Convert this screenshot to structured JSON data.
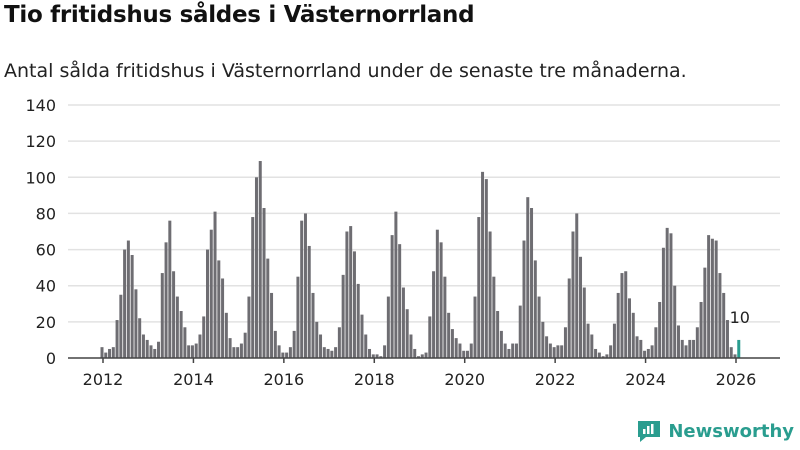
{
  "title": "Tio fritidshus såldes i Västernorrland",
  "subtitle": "Antal sålda fritidshus i Västernorrland under de senaste tre månaderna.",
  "brand": "Newsworthy",
  "colors": {
    "bar": "#6e6d72",
    "highlight": "#2a9d8f",
    "grid": "#e2e2e2"
  },
  "chart_data": {
    "type": "bar",
    "title": "Tio fritidshus såldes i Västernorrland",
    "xlabel": "",
    "ylabel": "",
    "ylim": [
      0,
      140
    ],
    "yticks": [
      0,
      20,
      40,
      60,
      80,
      100,
      120,
      140
    ],
    "xticks": [
      "2012",
      "2014",
      "2016",
      "2018",
      "2020",
      "2022",
      "2024",
      "2026"
    ],
    "start": "2012-01",
    "frequency": "monthly",
    "annotation": {
      "label": "10",
      "index": "last"
    },
    "values": [
      6,
      3,
      5,
      6,
      21,
      35,
      60,
      65,
      57,
      38,
      22,
      13,
      10,
      7,
      5,
      9,
      47,
      64,
      76,
      48,
      34,
      26,
      17,
      7,
      7,
      8,
      13,
      23,
      60,
      71,
      81,
      54,
      44,
      25,
      11,
      6,
      6,
      8,
      14,
      34,
      78,
      100,
      109,
      83,
      55,
      36,
      15,
      7,
      3,
      3,
      6,
      15,
      45,
      76,
      80,
      62,
      36,
      20,
      13,
      6,
      5,
      4,
      6,
      17,
      46,
      70,
      73,
      59,
      41,
      24,
      13,
      5,
      2,
      2,
      1,
      7,
      34,
      68,
      81,
      63,
      39,
      27,
      13,
      5,
      1,
      2,
      3,
      23,
      48,
      71,
      64,
      45,
      25,
      16,
      11,
      8,
      4,
      4,
      8,
      34,
      78,
      103,
      99,
      70,
      45,
      26,
      15,
      8,
      5,
      8,
      8,
      29,
      65,
      89,
      83,
      54,
      34,
      20,
      12,
      8,
      6,
      7,
      7,
      17,
      44,
      70,
      80,
      56,
      39,
      19,
      13,
      5,
      3,
      1,
      2,
      7,
      19,
      36,
      47,
      48,
      33,
      25,
      12,
      10,
      4,
      5,
      7,
      17,
      31,
      61,
      72,
      69,
      40,
      18,
      10,
      7,
      10,
      10,
      17,
      31,
      50,
      68,
      66,
      65,
      47,
      36,
      21,
      6,
      2,
      10
    ]
  }
}
